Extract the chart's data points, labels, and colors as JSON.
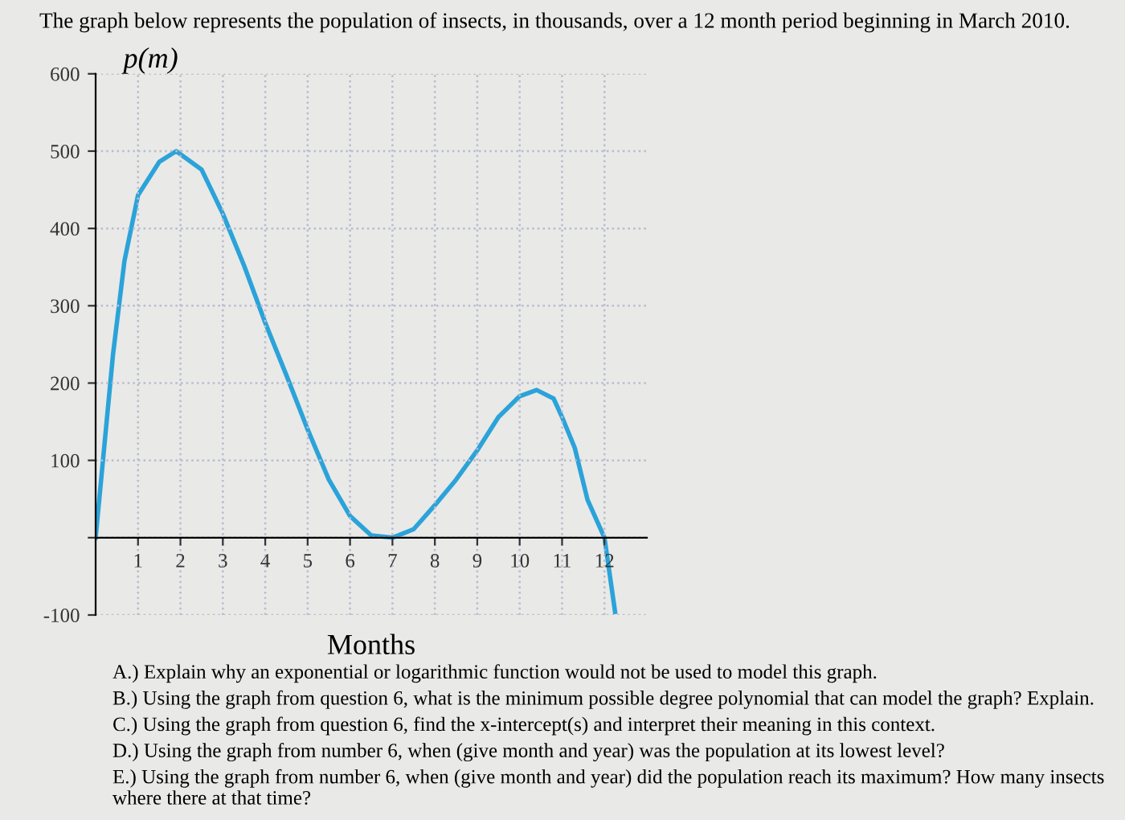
{
  "chart_data": {
    "type": "line",
    "title": "The graph below represents the population of insects, in thousands, over a 12 month period beginning in March 2010.",
    "ylabel": "p(m)",
    "xlabel": "Months",
    "series": [
      {
        "color": "#2ba3d9",
        "x": [
          0,
          0.41,
          0.68,
          1.0,
          1.5,
          1.9,
          2.5,
          3,
          3.5,
          4,
          4.5,
          5,
          5.5,
          6,
          6.5,
          7,
          7.5,
          8,
          8.5,
          9,
          9.5,
          10,
          10.4,
          10.8,
          11,
          11.3,
          11.6,
          12,
          12.25
        ],
        "values": [
          0,
          237,
          358,
          443,
          486,
          500,
          476,
          419,
          352,
          278,
          210,
          140,
          75,
          28,
          3,
          0,
          11,
          42,
          75,
          113,
          156,
          183,
          191,
          180,
          156,
          116,
          49,
          0,
          -96
        ]
      }
    ],
    "xlim": [
      0,
      13
    ],
    "ylim": [
      -100,
      600
    ],
    "xticks": [
      1,
      2,
      3,
      4,
      5,
      6,
      7,
      8,
      9,
      10,
      11,
      12
    ],
    "yticks": [
      -100,
      {
        "value": 0,
        "label": null
      },
      100,
      200,
      300,
      400,
      500,
      600
    ],
    "grid": true,
    "marker": "none",
    "line_style": "solid",
    "annotations": [
      "A.) Explain why an exponential or logarithmic function would not be used to model this graph.",
      "B.) Using the graph from question 6, what is the minimum possible degree polynomial that can model the graph? Explain.",
      "C.) Using the graph from question 6, find the x-intercept(s) and interpret their meaning in this context.",
      "D.) Using the graph from number 6, when (give month and year) was the population at its lowest level?",
      "E.) Using the graph from number 6, when (give month and year) did the population reach its maximum? How many insects where there at that time?"
    ]
  }
}
